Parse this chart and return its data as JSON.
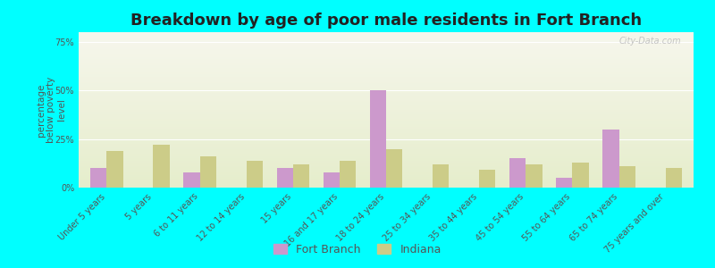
{
  "title": "Breakdown by age of poor male residents in Fort Branch",
  "ylabel": "percentage\nbelow poverty\nlevel",
  "categories": [
    "Under 5 years",
    "5 years",
    "6 to 11 years",
    "12 to 14 years",
    "15 years",
    "16 and 17 years",
    "18 to 24 years",
    "25 to 34 years",
    "35 to 44 years",
    "45 to 54 years",
    "55 to 64 years",
    "65 to 74 years",
    "75 years and over"
  ],
  "fort_branch": [
    10,
    0,
    8,
    0,
    10,
    8,
    50,
    0,
    0,
    15,
    5,
    30,
    0
  ],
  "indiana": [
    19,
    22,
    16,
    14,
    12,
    14,
    20,
    12,
    9,
    12,
    13,
    11,
    10
  ],
  "fort_branch_color": "#cc99cc",
  "indiana_color": "#cccc88",
  "outer_background": "#00ffff",
  "yticks": [
    0,
    25,
    50,
    75
  ],
  "ylim": [
    0,
    80
  ],
  "bar_width": 0.35,
  "title_fontsize": 13,
  "label_fontsize": 7.5,
  "tick_fontsize": 7.0,
  "watermark": "City-Data.com"
}
